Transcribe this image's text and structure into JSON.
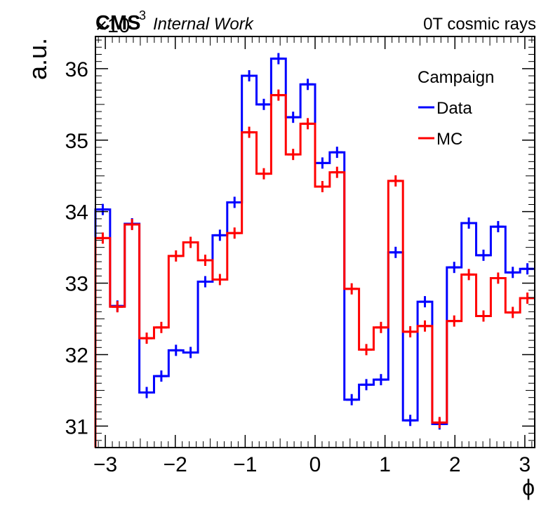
{
  "header": {
    "experiment": "CMS",
    "label": "Internal Work",
    "right_label": "0T cosmic rays",
    "exponent_base": "×10",
    "exponent": "3"
  },
  "chart_data": {
    "type": "line",
    "step": true,
    "xlabel": "ϕ",
    "ylabel": "a.u.",
    "xlim": [
      -3.14159,
      3.14159
    ],
    "ylim": [
      30.7,
      36.45
    ],
    "y_scale_note": "×10^3",
    "xticks": [
      -3,
      -2,
      -1,
      0,
      1,
      2,
      3
    ],
    "xtick_labels": [
      "−3",
      "−2",
      "−1",
      "0",
      "1",
      "2",
      "3"
    ],
    "yticks": [
      31,
      32,
      33,
      34,
      35,
      36
    ],
    "ytick_labels": [
      "31",
      "32",
      "33",
      "34",
      "35",
      "36"
    ],
    "grid": false,
    "legend": {
      "title": "Campaign",
      "position": "top-right"
    },
    "bin_edges": [
      -3.14159,
      -2.93215,
      -2.72271,
      -2.51327,
      -2.30383,
      -2.0944,
      -1.88496,
      -1.67552,
      -1.46608,
      -1.25664,
      -1.0472,
      -0.83776,
      -0.62832,
      -0.41888,
      -0.20944,
      0.0,
      0.20944,
      0.41888,
      0.62832,
      0.83776,
      1.0472,
      1.25664,
      1.46608,
      1.67552,
      1.88496,
      2.0944,
      2.30383,
      2.51327,
      2.72271,
      2.93215,
      3.14159
    ],
    "series": [
      {
        "name": "Data",
        "color": "#0000ff",
        "values": [
          34.03,
          32.68,
          33.83,
          31.47,
          31.7,
          32.06,
          32.03,
          33.02,
          33.67,
          34.13,
          35.9,
          35.5,
          36.14,
          35.32,
          35.78,
          34.68,
          34.83,
          31.37,
          31.58,
          31.65,
          33.43,
          31.08,
          32.74,
          31.03,
          33.22,
          33.84,
          33.39,
          33.79,
          33.15,
          33.2
        ]
      },
      {
        "name": "MC",
        "color": "#ff0000",
        "values": [
          33.63,
          32.67,
          33.82,
          32.23,
          32.38,
          33.38,
          33.57,
          33.32,
          33.05,
          33.7,
          35.11,
          34.53,
          35.63,
          34.8,
          35.23,
          34.35,
          34.55,
          32.92,
          32.07,
          32.38,
          34.43,
          32.32,
          32.4,
          31.05,
          32.47,
          33.12,
          32.54,
          33.07,
          32.59,
          32.79
        ]
      }
    ]
  }
}
